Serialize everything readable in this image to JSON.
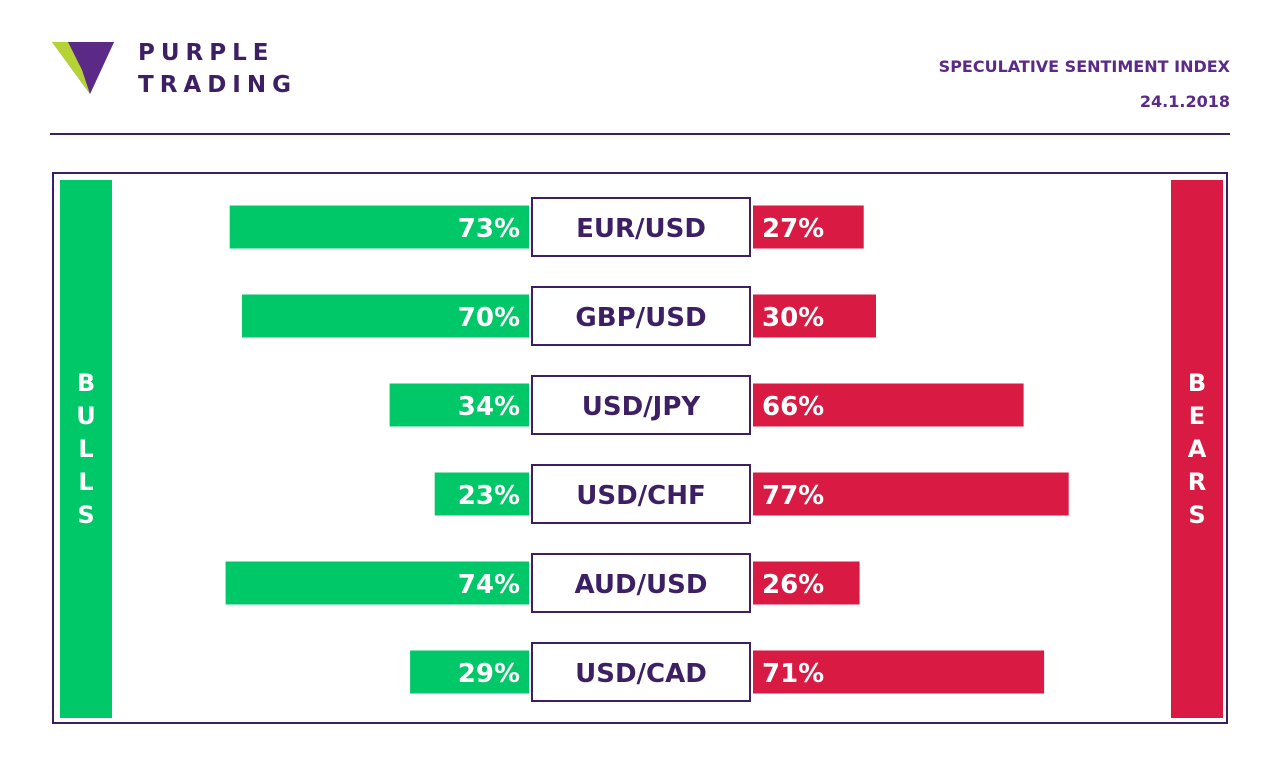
{
  "brand": {
    "line1": "PURPLE",
    "line2": "TRADING",
    "logo_icon": "purple-trading-logo-icon"
  },
  "header": {
    "title": "SPECULATIVE SENTIMENT INDEX",
    "date": "24.1.2018"
  },
  "colors": {
    "bulls": "#00c767",
    "bears": "#d91a42",
    "purple": "#3d1f63",
    "logo_green": "#b5d334",
    "logo_purple": "#7b3fa0"
  },
  "chart_data": {
    "type": "bar",
    "title": "SPECULATIVE SENTIMENT INDEX",
    "left_label": "BULLS",
    "right_label": "BEARS",
    "left_letters": [
      "B",
      "U",
      "L",
      "L",
      "S"
    ],
    "right_letters": [
      "B",
      "E",
      "A",
      "R",
      "S"
    ],
    "categories": [
      "EUR/USD",
      "GBP/USD",
      "USD/JPY",
      "USD/CHF",
      "AUD/USD",
      "USD/CAD"
    ],
    "series": [
      {
        "name": "BULLS",
        "values": [
          73,
          70,
          34,
          23,
          74,
          29
        ]
      },
      {
        "name": "BEARS",
        "values": [
          27,
          30,
          66,
          77,
          26,
          71
        ]
      }
    ],
    "value_labels": {
      "bulls": [
        "73%",
        "70%",
        "34%",
        "23%",
        "74%",
        "29%"
      ],
      "bears": [
        "27%",
        "30%",
        "66%",
        "77%",
        "26%",
        "71%"
      ]
    },
    "unit": "%"
  }
}
